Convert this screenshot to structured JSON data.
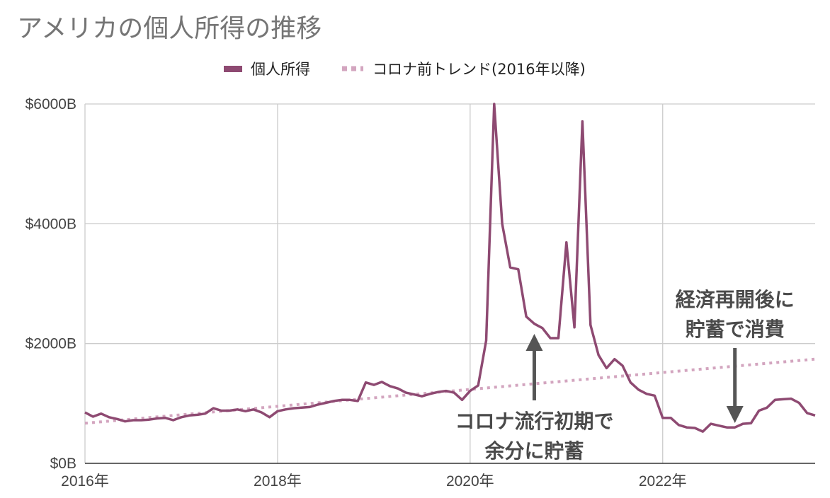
{
  "chart_data": {
    "type": "line",
    "title": "アメリカの個人所得の推移",
    "ylim": [
      0,
      6000
    ],
    "xlim": [
      "2016-01",
      "2023-08"
    ],
    "y_ticks": [
      {
        "value": 0,
        "label": "$0B"
      },
      {
        "value": 2000,
        "label": "$2000B"
      },
      {
        "value": 4000,
        "label": "$4000B"
      },
      {
        "value": 6000,
        "label": "$6000B"
      }
    ],
    "x_ticks": [
      {
        "value": "2016-01",
        "label": "2016年"
      },
      {
        "value": "2018-01",
        "label": "2018年"
      },
      {
        "value": "2020-01",
        "label": "2020年"
      },
      {
        "value": "2022-01",
        "label": "2022年"
      }
    ],
    "grid": true,
    "legend_position": "top-center",
    "series": [
      {
        "name": "個人所得",
        "color": "#8e4a72",
        "style": "solid",
        "x": [
          "2016-01",
          "2016-02",
          "2016-03",
          "2016-04",
          "2016-05",
          "2016-06",
          "2016-07",
          "2016-08",
          "2016-09",
          "2016-10",
          "2016-11",
          "2016-12",
          "2017-01",
          "2017-02",
          "2017-03",
          "2017-04",
          "2017-05",
          "2017-06",
          "2017-07",
          "2017-08",
          "2017-09",
          "2017-10",
          "2017-11",
          "2017-12",
          "2018-01",
          "2018-02",
          "2018-03",
          "2018-04",
          "2018-05",
          "2018-06",
          "2018-07",
          "2018-08",
          "2018-09",
          "2018-10",
          "2018-11",
          "2018-12",
          "2019-01",
          "2019-02",
          "2019-03",
          "2019-04",
          "2019-05",
          "2019-06",
          "2019-07",
          "2019-08",
          "2019-09",
          "2019-10",
          "2019-11",
          "2019-12",
          "2020-01",
          "2020-02",
          "2020-03",
          "2020-04",
          "2020-05",
          "2020-06",
          "2020-07",
          "2020-08",
          "2020-09",
          "2020-10",
          "2020-11",
          "2020-12",
          "2021-01",
          "2021-02",
          "2021-03",
          "2021-04",
          "2021-05",
          "2021-06",
          "2021-07",
          "2021-08",
          "2021-09",
          "2021-10",
          "2021-11",
          "2021-12",
          "2022-01",
          "2022-02",
          "2022-03",
          "2022-04",
          "2022-05",
          "2022-06",
          "2022-07",
          "2022-08",
          "2022-09",
          "2022-10",
          "2022-11",
          "2022-12",
          "2023-01",
          "2023-02",
          "2023-03",
          "2023-04",
          "2023-05",
          "2023-06",
          "2023-07",
          "2023-08"
        ],
        "values": [
          850,
          780,
          830,
          770,
          740,
          700,
          720,
          720,
          730,
          750,
          760,
          720,
          770,
          800,
          810,
          830,
          920,
          880,
          880,
          900,
          870,
          900,
          850,
          770,
          870,
          900,
          920,
          930,
          940,
          980,
          1010,
          1040,
          1060,
          1060,
          1040,
          1350,
          1310,
          1360,
          1290,
          1250,
          1180,
          1150,
          1120,
          1160,
          1190,
          1210,
          1180,
          1060,
          1210,
          1300,
          2050,
          6000,
          4000,
          3270,
          3240,
          2450,
          2330,
          2260,
          2090,
          2090,
          3690,
          2270,
          5710,
          2310,
          1810,
          1590,
          1740,
          1630,
          1350,
          1230,
          1160,
          1130,
          760,
          760,
          640,
          600,
          590,
          530,
          660,
          630,
          600,
          600,
          660,
          670,
          880,
          930,
          1060,
          1070,
          1080,
          1010,
          840,
          800
        ]
      },
      {
        "name": "コロナ前トレンド(2016年以降)",
        "color": "#d3a5bf",
        "style": "dotted",
        "x": [
          "2016-01",
          "2023-08"
        ],
        "values": [
          670,
          1740
        ]
      }
    ],
    "annotations": [
      {
        "lines": [
          "コロナ流行初期で",
          "余分に貯蓄"
        ],
        "arrow": "up",
        "arrow_at": "2020-09"
      },
      {
        "lines": [
          "経済再開後に",
          "貯蓄で消費"
        ],
        "arrow": "down",
        "arrow_at": "2022-10"
      }
    ]
  }
}
